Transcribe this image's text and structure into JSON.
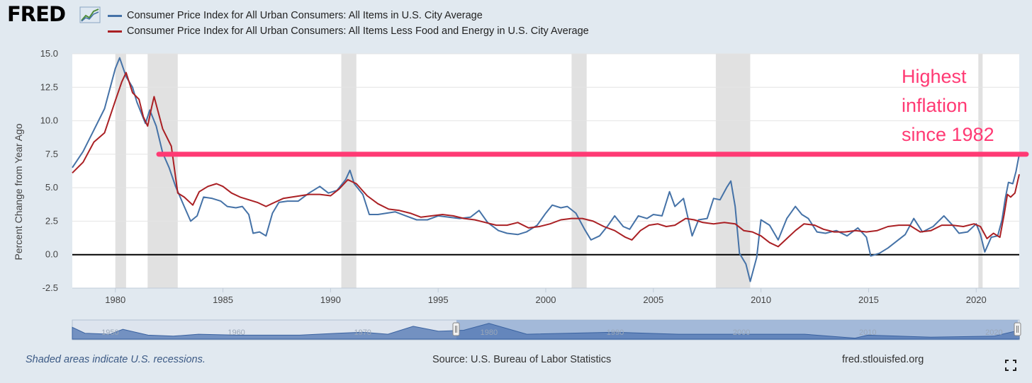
{
  "header": {
    "logo_text": "FRED",
    "logo_icon": "line-chart-icon",
    "legend": [
      {
        "label": "Consumer Price Index for All Urban Consumers: All Items in U.S. City Average",
        "color": "#4572a7"
      },
      {
        "label": "Consumer Price Index for All Urban Consumers: All Items Less Food and Energy in U.S. City Average",
        "color": "#aa2024"
      }
    ]
  },
  "footer": {
    "note": "Shaded areas indicate U.S. recessions.",
    "source": "Source: U.S. Bureau of Labor Statistics",
    "site": "fred.stlouisfed.org",
    "fullscreen_icon": "fullscreen-icon"
  },
  "annotation": {
    "lines": [
      "Highest",
      "inflation",
      "since 1982"
    ],
    "color": "#ff3a74",
    "value": 7.5
  },
  "navigator": {
    "tick_labels": [
      "1950",
      "1960",
      "1970",
      "1980",
      "1990",
      "2000",
      "2010",
      "2020"
    ],
    "range": [
      1978,
      2022
    ]
  },
  "chart_data": {
    "type": "line",
    "title": "",
    "xlabel": "",
    "ylabel": "Percent Change from Year Ago",
    "xlim": [
      1978,
      2022
    ],
    "ylim": [
      -2.5,
      15
    ],
    "x_ticks": [
      1980,
      1985,
      1990,
      1995,
      2000,
      2005,
      2010,
      2015,
      2020
    ],
    "y_ticks": [
      -2.5,
      0,
      2.5,
      5,
      7.5,
      10,
      12.5,
      15
    ],
    "y_tick_labels": [
      "-2.5",
      "0.0",
      "2.5",
      "5.0",
      "7.5",
      "10.0",
      "12.5",
      "15.0"
    ],
    "grid": true,
    "recessions": [
      [
        1980.0,
        1980.5
      ],
      [
        1981.5,
        1982.9
      ],
      [
        1990.5,
        1991.2
      ],
      [
        2001.2,
        2001.9
      ],
      [
        2007.9,
        2009.5
      ],
      [
        2020.1,
        2020.3
      ]
    ],
    "series": [
      {
        "name": "Consumer Price Index for All Urban Consumers: All Items in U.S. City Average",
        "color": "#4572a7",
        "points": [
          [
            1978,
            6.5
          ],
          [
            1978.5,
            7.7
          ],
          [
            1979,
            9.3
          ],
          [
            1979.5,
            10.9
          ],
          [
            1980,
            13.9
          ],
          [
            1980.2,
            14.7
          ],
          [
            1980.5,
            13.3
          ],
          [
            1980.8,
            12.5
          ],
          [
            1981,
            11.4
          ],
          [
            1981.4,
            9.8
          ],
          [
            1981.6,
            10.8
          ],
          [
            1981.9,
            9.6
          ],
          [
            1982.2,
            7.6
          ],
          [
            1982.5,
            6.5
          ],
          [
            1982.8,
            5.1
          ],
          [
            1983.2,
            3.6
          ],
          [
            1983.5,
            2.5
          ],
          [
            1983.8,
            2.9
          ],
          [
            1984.1,
            4.3
          ],
          [
            1984.5,
            4.2
          ],
          [
            1984.9,
            4.0
          ],
          [
            1985.2,
            3.6
          ],
          [
            1985.6,
            3.5
          ],
          [
            1985.9,
            3.6
          ],
          [
            1986.2,
            3.0
          ],
          [
            1986.4,
            1.6
          ],
          [
            1986.7,
            1.7
          ],
          [
            1987,
            1.4
          ],
          [
            1987.3,
            3.1
          ],
          [
            1987.6,
            3.9
          ],
          [
            1988,
            4.0
          ],
          [
            1988.5,
            4.0
          ],
          [
            1989,
            4.6
          ],
          [
            1989.5,
            5.1
          ],
          [
            1989.9,
            4.6
          ],
          [
            1990.3,
            4.8
          ],
          [
            1990.7,
            5.6
          ],
          [
            1990.9,
            6.3
          ],
          [
            1991.1,
            5.3
          ],
          [
            1991.5,
            4.5
          ],
          [
            1991.8,
            3.0
          ],
          [
            1992.2,
            3.0
          ],
          [
            1992.6,
            3.1
          ],
          [
            1993,
            3.2
          ],
          [
            1993.5,
            2.9
          ],
          [
            1994,
            2.6
          ],
          [
            1994.5,
            2.6
          ],
          [
            1995,
            2.9
          ],
          [
            1995.5,
            2.8
          ],
          [
            1996,
            2.7
          ],
          [
            1996.5,
            2.8
          ],
          [
            1996.9,
            3.3
          ],
          [
            1997.3,
            2.4
          ],
          [
            1997.8,
            1.8
          ],
          [
            1998.2,
            1.6
          ],
          [
            1998.7,
            1.5
          ],
          [
            1999.1,
            1.7
          ],
          [
            1999.6,
            2.2
          ],
          [
            2000,
            3.1
          ],
          [
            2000.3,
            3.7
          ],
          [
            2000.7,
            3.5
          ],
          [
            2001,
            3.6
          ],
          [
            2001.4,
            3.1
          ],
          [
            2001.8,
            1.9
          ],
          [
            2002.1,
            1.1
          ],
          [
            2002.5,
            1.4
          ],
          [
            2002.9,
            2.2
          ],
          [
            2003.2,
            2.9
          ],
          [
            2003.6,
            2.1
          ],
          [
            2003.9,
            1.9
          ],
          [
            2004.3,
            2.9
          ],
          [
            2004.7,
            2.7
          ],
          [
            2005,
            3.0
          ],
          [
            2005.4,
            2.9
          ],
          [
            2005.75,
            4.7
          ],
          [
            2006,
            3.6
          ],
          [
            2006.4,
            4.2
          ],
          [
            2006.8,
            1.4
          ],
          [
            2007.1,
            2.6
          ],
          [
            2007.5,
            2.7
          ],
          [
            2007.8,
            4.2
          ],
          [
            2008.1,
            4.1
          ],
          [
            2008.4,
            5.0
          ],
          [
            2008.6,
            5.5
          ],
          [
            2008.8,
            3.6
          ],
          [
            2009,
            0.1
          ],
          [
            2009.3,
            -0.7
          ],
          [
            2009.5,
            -2.0
          ],
          [
            2009.8,
            -0.2
          ],
          [
            2010,
            2.6
          ],
          [
            2010.4,
            2.2
          ],
          [
            2010.8,
            1.1
          ],
          [
            2011.2,
            2.7
          ],
          [
            2011.6,
            3.6
          ],
          [
            2011.9,
            3.0
          ],
          [
            2012.2,
            2.7
          ],
          [
            2012.6,
            1.7
          ],
          [
            2013,
            1.6
          ],
          [
            2013.5,
            1.8
          ],
          [
            2014,
            1.4
          ],
          [
            2014.5,
            2.0
          ],
          [
            2014.9,
            1.3
          ],
          [
            2015.1,
            -0.1
          ],
          [
            2015.5,
            0.1
          ],
          [
            2015.9,
            0.5
          ],
          [
            2016.3,
            1.0
          ],
          [
            2016.7,
            1.5
          ],
          [
            2017.1,
            2.7
          ],
          [
            2017.5,
            1.7
          ],
          [
            2018,
            2.1
          ],
          [
            2018.5,
            2.9
          ],
          [
            2018.9,
            2.2
          ],
          [
            2019.2,
            1.6
          ],
          [
            2019.6,
            1.7
          ],
          [
            2020,
            2.3
          ],
          [
            2020.2,
            1.5
          ],
          [
            2020.4,
            0.2
          ],
          [
            2020.7,
            1.3
          ],
          [
            2021,
            1.4
          ],
          [
            2021.2,
            2.6
          ],
          [
            2021.35,
            4.2
          ],
          [
            2021.5,
            5.4
          ],
          [
            2021.7,
            5.3
          ],
          [
            2021.85,
            6.2
          ],
          [
            2022,
            7.5
          ]
        ]
      },
      {
        "name": "Consumer Price Index for All Urban Consumers: All Items Less Food and Energy in U.S. City Average",
        "color": "#aa2024",
        "points": [
          [
            1978,
            6.1
          ],
          [
            1978.5,
            6.9
          ],
          [
            1979,
            8.4
          ],
          [
            1979.5,
            9.1
          ],
          [
            1980,
            11.5
          ],
          [
            1980.3,
            12.9
          ],
          [
            1980.5,
            13.6
          ],
          [
            1980.8,
            12.1
          ],
          [
            1981.1,
            11.6
          ],
          [
            1981.3,
            10.3
          ],
          [
            1981.5,
            9.6
          ],
          [
            1981.7,
            11.1
          ],
          [
            1981.8,
            11.8
          ],
          [
            1982.2,
            9.4
          ],
          [
            1982.6,
            8.1
          ],
          [
            1982.9,
            4.6
          ],
          [
            1983.2,
            4.3
          ],
          [
            1983.6,
            3.7
          ],
          [
            1983.9,
            4.7
          ],
          [
            1984.3,
            5.1
          ],
          [
            1984.7,
            5.3
          ],
          [
            1985,
            5.1
          ],
          [
            1985.4,
            4.6
          ],
          [
            1985.8,
            4.3
          ],
          [
            1986.2,
            4.1
          ],
          [
            1986.6,
            3.9
          ],
          [
            1987,
            3.6
          ],
          [
            1987.4,
            3.9
          ],
          [
            1987.8,
            4.2
          ],
          [
            1988.2,
            4.3
          ],
          [
            1988.6,
            4.4
          ],
          [
            1989,
            4.5
          ],
          [
            1989.5,
            4.5
          ],
          [
            1990,
            4.4
          ],
          [
            1990.4,
            4.9
          ],
          [
            1990.8,
            5.6
          ],
          [
            1991.2,
            5.3
          ],
          [
            1991.7,
            4.4
          ],
          [
            1992.2,
            3.8
          ],
          [
            1992.7,
            3.4
          ],
          [
            1993.2,
            3.3
          ],
          [
            1993.7,
            3.1
          ],
          [
            1994.2,
            2.8
          ],
          [
            1994.7,
            2.9
          ],
          [
            1995.2,
            3.0
          ],
          [
            1995.7,
            2.9
          ],
          [
            1996.2,
            2.7
          ],
          [
            1996.7,
            2.6
          ],
          [
            1997.2,
            2.4
          ],
          [
            1997.7,
            2.2
          ],
          [
            1998.2,
            2.2
          ],
          [
            1998.7,
            2.4
          ],
          [
            1999.2,
            2.0
          ],
          [
            1999.7,
            2.1
          ],
          [
            2000.2,
            2.3
          ],
          [
            2000.7,
            2.6
          ],
          [
            2001.2,
            2.7
          ],
          [
            2001.7,
            2.7
          ],
          [
            2002.2,
            2.5
          ],
          [
            2002.7,
            2.1
          ],
          [
            2003.2,
            1.8
          ],
          [
            2003.7,
            1.3
          ],
          [
            2004,
            1.1
          ],
          [
            2004.4,
            1.8
          ],
          [
            2004.8,
            2.2
          ],
          [
            2005.2,
            2.3
          ],
          [
            2005.6,
            2.1
          ],
          [
            2006,
            2.2
          ],
          [
            2006.5,
            2.7
          ],
          [
            2006.9,
            2.6
          ],
          [
            2007.3,
            2.4
          ],
          [
            2007.8,
            2.3
          ],
          [
            2008.3,
            2.4
          ],
          [
            2008.8,
            2.3
          ],
          [
            2009.2,
            1.8
          ],
          [
            2009.6,
            1.7
          ],
          [
            2010,
            1.4
          ],
          [
            2010.4,
            0.9
          ],
          [
            2010.8,
            0.6
          ],
          [
            2011.2,
            1.2
          ],
          [
            2011.6,
            1.8
          ],
          [
            2012,
            2.3
          ],
          [
            2012.5,
            2.2
          ],
          [
            2012.9,
            1.9
          ],
          [
            2013.4,
            1.7
          ],
          [
            2013.9,
            1.7
          ],
          [
            2014.4,
            1.8
          ],
          [
            2014.9,
            1.7
          ],
          [
            2015.4,
            1.8
          ],
          [
            2015.9,
            2.1
          ],
          [
            2016.4,
            2.2
          ],
          [
            2016.9,
            2.2
          ],
          [
            2017.4,
            1.7
          ],
          [
            2017.9,
            1.8
          ],
          [
            2018.4,
            2.2
          ],
          [
            2018.9,
            2.2
          ],
          [
            2019.4,
            2.1
          ],
          [
            2019.9,
            2.3
          ],
          [
            2020.2,
            2.1
          ],
          [
            2020.5,
            1.2
          ],
          [
            2020.8,
            1.6
          ],
          [
            2021.1,
            1.3
          ],
          [
            2021.3,
            3.0
          ],
          [
            2021.45,
            4.5
          ],
          [
            2021.6,
            4.3
          ],
          [
            2021.8,
            4.6
          ],
          [
            2022,
            6.0
          ]
        ]
      }
    ]
  }
}
